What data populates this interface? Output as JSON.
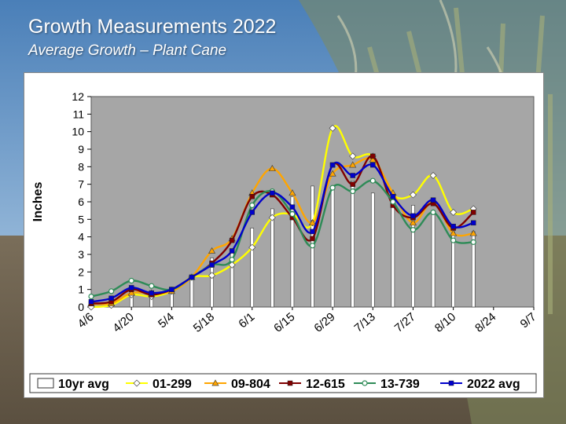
{
  "slide": {
    "title": "Growth Measurements 2022",
    "subtitle": "Average Growth – Plant Cane"
  },
  "chart_data": {
    "type": "line",
    "title": "Growth Measurements 2022",
    "subtitle": "Average Growth – Plant Cane",
    "ylabel": "Inches",
    "xlabel": "",
    "ylim": [
      0,
      12
    ],
    "yticks": [
      0,
      1,
      2,
      3,
      4,
      5,
      6,
      7,
      8,
      9,
      10,
      11,
      12
    ],
    "categories": [
      "4/6",
      "4/13",
      "4/20",
      "4/27",
      "5/4",
      "5/11",
      "5/18",
      "5/25",
      "6/1",
      "6/8",
      "6/15",
      "6/22",
      "6/29",
      "7/6",
      "7/13",
      "7/20",
      "7/27",
      "8/3",
      "8/10",
      "8/17",
      "8/24",
      "8/31",
      "9/7"
    ],
    "tick_labels": [
      "4/6",
      "4/20",
      "5/4",
      "5/18",
      "6/1",
      "6/15",
      "6/29",
      "7/13",
      "7/27",
      "8/10",
      "8/24",
      "9/7"
    ],
    "bar_series": {
      "name": "10yr avg",
      "color": "#ffffff",
      "values": [
        0.2,
        0.3,
        0.7,
        0.7,
        0.9,
        1.6,
        2.8,
        3.3,
        4.5,
        5.6,
        6.3,
        6.9,
        6.8,
        7.2,
        6.5,
        5.9,
        5.8,
        5.5,
        4.5,
        4.3,
        null,
        null,
        null
      ]
    },
    "series": [
      {
        "name": "01-299",
        "color": "#ffff00",
        "marker": "diamond",
        "values": [
          0.0,
          0.1,
          0.7,
          0.6,
          0.9,
          1.7,
          1.8,
          2.4,
          3.4,
          5.1,
          5.3,
          4.8,
          10.2,
          8.6,
          8.6,
          6.4,
          6.4,
          7.5,
          5.4,
          5.6,
          null,
          null,
          null
        ]
      },
      {
        "name": "09-804",
        "color": "#ffa500",
        "marker": "triangle",
        "values": [
          0.2,
          0.2,
          0.8,
          0.8,
          0.9,
          1.7,
          3.2,
          3.9,
          6.5,
          7.9,
          6.5,
          4.8,
          7.6,
          8.1,
          8.4,
          6.5,
          4.8,
          6.0,
          4.2,
          4.2,
          null,
          null,
          null
        ]
      },
      {
        "name": "12-615",
        "color": "#800000",
        "marker": "square",
        "values": [
          0.2,
          0.3,
          1.0,
          0.7,
          1.0,
          1.7,
          2.5,
          3.8,
          6.3,
          6.4,
          5.1,
          3.9,
          8.1,
          7.0,
          8.6,
          5.8,
          5.1,
          5.9,
          4.5,
          5.4,
          null,
          null,
          null
        ]
      },
      {
        "name": "13-739",
        "color": "#2e8b57",
        "marker": "circle",
        "values": [
          0.6,
          0.9,
          1.5,
          1.2,
          1.0,
          1.7,
          2.4,
          2.7,
          5.8,
          6.6,
          5.3,
          3.5,
          6.8,
          6.6,
          7.2,
          6.0,
          4.4,
          5.4,
          3.8,
          3.7,
          null,
          null,
          null
        ]
      },
      {
        "name": "2022 avg",
        "color": "#0000cc",
        "marker": "square",
        "values": [
          0.3,
          0.5,
          1.1,
          0.8,
          1.0,
          1.7,
          2.4,
          3.2,
          5.4,
          6.5,
          5.7,
          4.3,
          8.1,
          7.5,
          8.1,
          6.3,
          5.2,
          6.1,
          4.6,
          4.8,
          null,
          null,
          null
        ]
      }
    ],
    "legend": {
      "placement": "bottom",
      "items": [
        "10yr avg",
        "01-299",
        "09-804",
        "12-615",
        "13-739",
        "2022 avg"
      ]
    },
    "grid": false,
    "plot_background": "#a6a6a6"
  }
}
